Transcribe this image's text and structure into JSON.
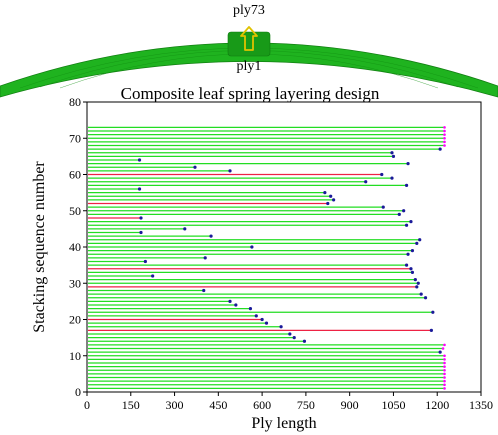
{
  "spring": {
    "top_label": "ply73",
    "bottom_label": "ply1"
  },
  "chart_data": {
    "type": "line",
    "title": "Composite leaf spring layering design",
    "xlabel": "Ply length",
    "ylabel": "Stacking sequence number",
    "xlim": [
      0,
      1350
    ],
    "ylim": [
      0,
      80
    ],
    "x_ticks": [
      0,
      150,
      300,
      450,
      600,
      750,
      900,
      1050,
      1200,
      1350
    ],
    "y_ticks": [
      0,
      10,
      20,
      30,
      40,
      50,
      60,
      70,
      80
    ],
    "grid": false,
    "colors": {
      "standard_ply": "#22dd22",
      "highlight_ply": "#ee2244",
      "end_marker": "#ff00ff",
      "drop_marker": "#1a1a99",
      "spring_body": "#1fb31f",
      "arrow": "#e0c200"
    },
    "series": [
      {
        "name": "",
        "y": [
          1,
          2,
          3,
          4,
          5,
          6,
          7,
          8,
          9,
          10,
          11,
          12,
          13,
          14,
          15,
          16,
          17,
          18,
          19,
          20,
          21,
          22,
          23,
          24,
          25,
          26,
          27,
          28,
          29,
          30,
          31,
          32,
          33,
          34,
          35,
          36,
          37,
          38,
          39,
          40,
          41,
          42,
          43,
          44,
          45,
          46,
          47,
          48,
          49,
          50,
          51,
          52,
          53,
          54,
          55,
          56,
          57,
          58,
          59,
          60,
          61,
          62,
          63,
          64,
          65,
          66,
          67,
          68,
          69,
          70,
          71,
          72,
          73
        ],
        "x": [
          1225,
          1225,
          1225,
          1225,
          1225,
          1225,
          1225,
          1225,
          1225,
          1225,
          1210,
          1220,
          1225,
          745,
          710,
          695,
          1180,
          665,
          615,
          600,
          580,
          1185,
          560,
          510,
          490,
          1160,
          1145,
          400,
          1130,
          1135,
          1125,
          225,
          1115,
          1110,
          1095,
          200,
          405,
          1100,
          1115,
          565,
          1130,
          1140,
          425,
          185,
          335,
          1095,
          1110,
          185,
          1070,
          1085,
          1015,
          825,
          845,
          835,
          815,
          180,
          1095,
          955,
          1045,
          1010,
          490,
          370,
          1100,
          180,
          1050,
          1045,
          1210,
          1225,
          1225,
          1225,
          1225,
          1225,
          1225
        ],
        "highlight": [
          17,
          20,
          29,
          34,
          48,
          52,
          60
        ]
      }
    ]
  }
}
